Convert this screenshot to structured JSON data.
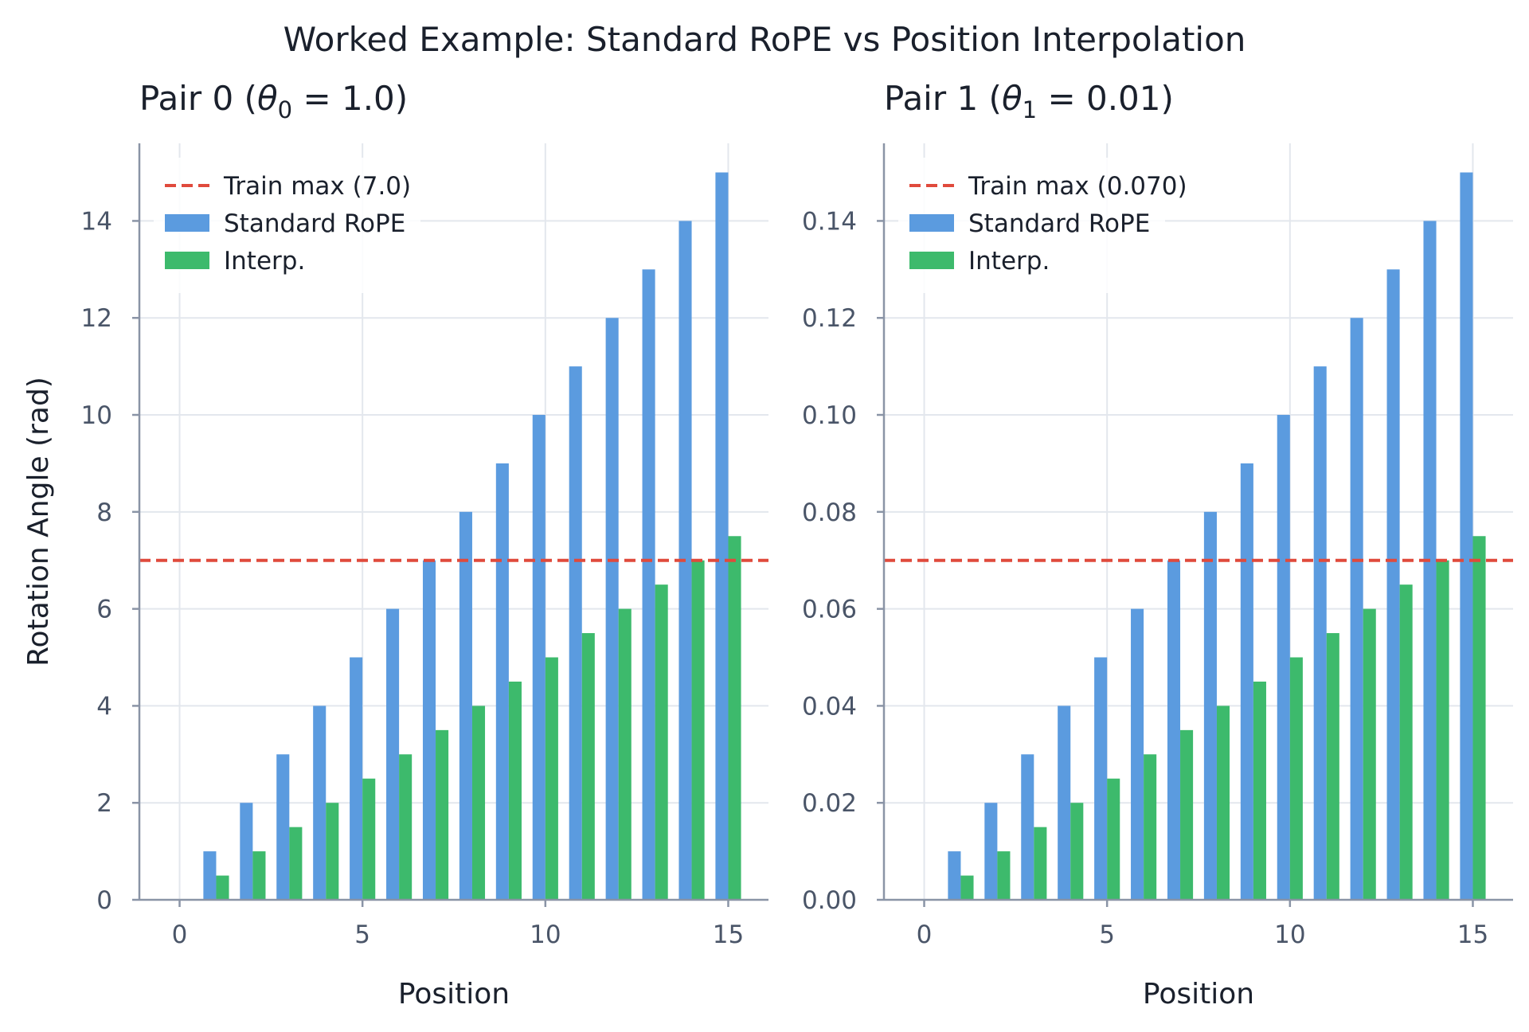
{
  "suptitle": "Worked Example: Standard RoPE vs Position Interpolation",
  "colors": {
    "standard": "#5b9bdf",
    "interp": "#3dba6c",
    "train_max_line": "#e04a3c",
    "axis": "#8a94a6",
    "grid": "#e3e7ed",
    "tick_text": "#4a5568",
    "title_text": "#1a202c"
  },
  "chart_data": [
    {
      "type": "bar",
      "title": "Pair 0 (θ₀ = 1.0)",
      "title_parts": {
        "prefix": "Pair 0 (",
        "theta": "θ",
        "sub": "0",
        "rest": " = 1.0)"
      },
      "xlabel": "Position",
      "ylabel": "Rotation Angle (rad)",
      "x": [
        0,
        1,
        2,
        3,
        4,
        5,
        6,
        7,
        8,
        9,
        10,
        11,
        12,
        13,
        14,
        15
      ],
      "xlim": [
        -1.1,
        16.1
      ],
      "ylim": [
        0,
        15.6
      ],
      "xticks": [
        0,
        5,
        10,
        15
      ],
      "xtick_labels": [
        "0",
        "5",
        "10",
        "15"
      ],
      "yticks": [
        0,
        2,
        4,
        6,
        8,
        10,
        12,
        14
      ],
      "ytick_labels": [
        "0",
        "2",
        "4",
        "6",
        "8",
        "10",
        "12",
        "14"
      ],
      "series": [
        {
          "name": "Standard RoPE",
          "values": [
            0,
            1,
            2,
            3,
            4,
            5,
            6,
            7,
            8,
            9,
            10,
            11,
            12,
            13,
            14,
            15
          ]
        },
        {
          "name": "Interp.",
          "values": [
            0,
            0.5,
            1,
            1.5,
            2,
            2.5,
            3,
            3.5,
            4,
            4.5,
            5,
            5.5,
            6,
            6.5,
            7,
            7.5
          ]
        }
      ],
      "hline": {
        "y": 7.0,
        "label": "Train max (7.0)"
      },
      "legend": {
        "position": "top-left",
        "items": [
          "Train max (7.0)",
          "Standard RoPE",
          "Interp."
        ]
      },
      "grid": true
    },
    {
      "type": "bar",
      "title": "Pair 1 (θ₁ = 0.01)",
      "title_parts": {
        "prefix": "Pair 1 (",
        "theta": "θ",
        "sub": "1",
        "rest": " = 0.01)"
      },
      "xlabel": "Position",
      "ylabel": "",
      "x": [
        0,
        1,
        2,
        3,
        4,
        5,
        6,
        7,
        8,
        9,
        10,
        11,
        12,
        13,
        14,
        15
      ],
      "xlim": [
        -1.1,
        16.1
      ],
      "ylim": [
        0,
        0.156
      ],
      "xticks": [
        0,
        5,
        10,
        15
      ],
      "xtick_labels": [
        "0",
        "5",
        "10",
        "15"
      ],
      "yticks": [
        0,
        0.02,
        0.04,
        0.06,
        0.08,
        0.1,
        0.12,
        0.14
      ],
      "ytick_labels": [
        "0.00",
        "0.02",
        "0.04",
        "0.06",
        "0.08",
        "0.10",
        "0.12",
        "0.14"
      ],
      "series": [
        {
          "name": "Standard RoPE",
          "values": [
            0,
            0.01,
            0.02,
            0.03,
            0.04,
            0.05,
            0.06,
            0.07,
            0.08,
            0.09,
            0.1,
            0.11,
            0.12,
            0.13,
            0.14,
            0.15
          ]
        },
        {
          "name": "Interp.",
          "values": [
            0,
            0.005,
            0.01,
            0.015,
            0.02,
            0.025,
            0.03,
            0.035,
            0.04,
            0.045,
            0.05,
            0.055,
            0.06,
            0.065,
            0.07,
            0.075
          ]
        }
      ],
      "hline": {
        "y": 0.07,
        "label": "Train max (0.070)"
      },
      "legend": {
        "position": "top-left",
        "items": [
          "Train max (0.070)",
          "Standard RoPE",
          "Interp."
        ]
      },
      "grid": true
    }
  ]
}
